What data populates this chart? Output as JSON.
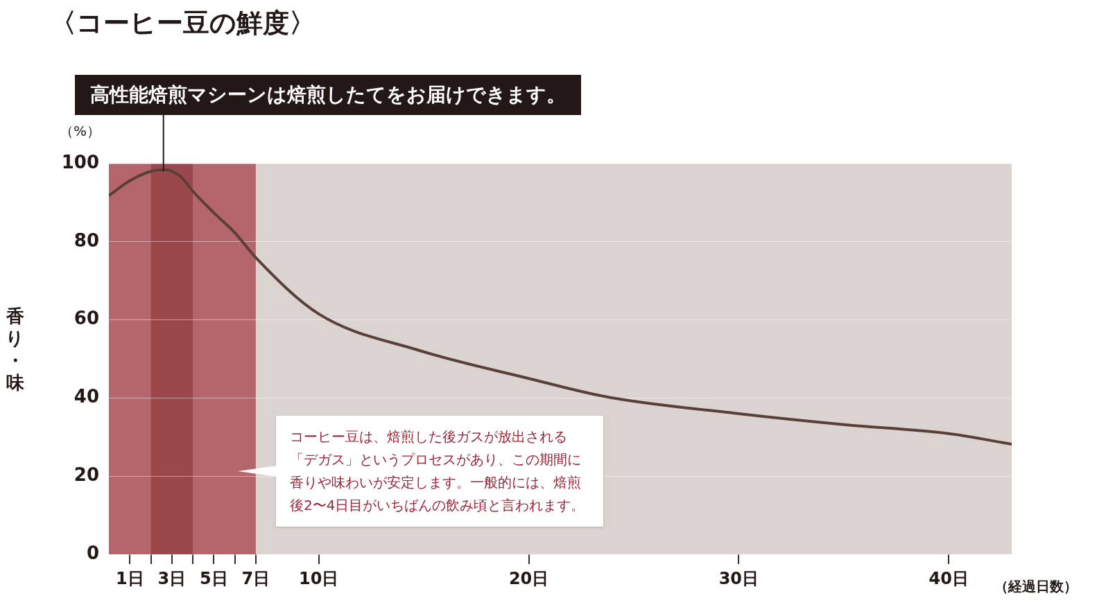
{
  "chart_data": {
    "type": "line",
    "title": "〈コーヒー豆の鮮度〉",
    "ylabel": "香り・味",
    "xlabel": "（経過日数）",
    "annotations": [
      "（%）",
      {
        "text": "高性能焙煎マシーンは焙煎したてをお届けできます。",
        "x": 2.6,
        "y": 98
      },
      "コーヒー豆は、焙煎した後ガスが放出される「デガス」というプロセスがあり、この期間に香りや味わいが安定します。一般的には、焙煎後2〜4日目がいちばんの飲み頃と言われます。"
    ],
    "x": [
      0,
      1,
      2,
      2.7,
      3,
      3.45,
      4,
      5,
      6,
      7,
      10,
      14.7,
      20,
      23.8,
      30,
      35,
      40,
      43
    ],
    "series": [
      {
        "color": "#5a3f38",
        "values": [
          91.8,
          95.6,
          98,
          98.4,
          98,
          96.5,
          92.9,
          87.4,
          82.3,
          75.9,
          61.5,
          52.3,
          45,
          40.2,
          36,
          33.2,
          30.9,
          28.2
        ]
      }
    ],
    "xlim": [
      0,
      43
    ],
    "xticks": [
      {
        "value": 1,
        "label": "1日"
      },
      {
        "value": 2,
        "label": null
      },
      {
        "value": 3,
        "label": "3日"
      },
      {
        "value": 4,
        "label": null
      },
      {
        "value": 5,
        "label": "5日"
      },
      {
        "value": 6,
        "label": null
      },
      {
        "value": 7,
        "label": "7日"
      },
      {
        "value": 10,
        "label": "10日"
      },
      {
        "value": 20,
        "label": "20日"
      },
      {
        "value": 30,
        "label": "30日"
      },
      {
        "value": 40,
        "label": "40日"
      }
    ],
    "ylim": [
      0,
      100
    ],
    "yticks": [
      0,
      20,
      40,
      60,
      80,
      100
    ],
    "bands": [
      {
        "axis": "x",
        "from": 0,
        "to": 7,
        "color": "#b5666c"
      },
      {
        "axis": "x",
        "from": 2,
        "to": 4,
        "color": "#9b484c"
      },
      {
        "axis": "x",
        "from": 7,
        "to": 43,
        "color": "#dbd3d0"
      }
    ],
    "grid": "y",
    "marker": "none",
    "line_style": "solid",
    "legend": false
  }
}
